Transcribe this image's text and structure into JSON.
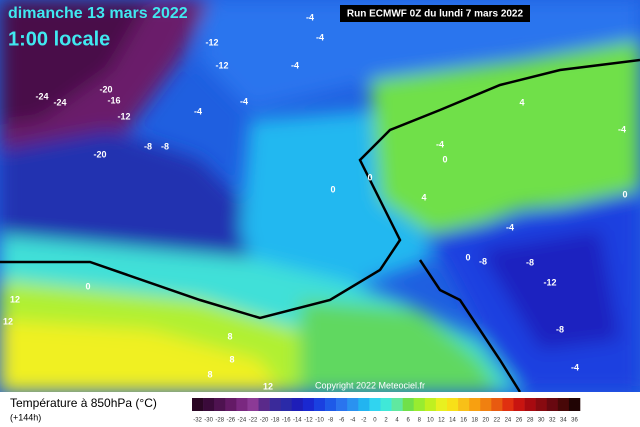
{
  "header": {
    "date": "dimanche 13 mars 2022",
    "time": "1:00 locale",
    "run": "Run ECMWF 0Z du lundi 7 mars 2022"
  },
  "map": {
    "labels": [
      -4,
      -12,
      -4,
      -12,
      -4,
      -24,
      -24,
      -20,
      -16,
      -12,
      -4,
      -4,
      -8,
      -8,
      -20,
      -4,
      4,
      0,
      0,
      0,
      4,
      -4,
      0,
      -4,
      0,
      -8,
      -8,
      -12,
      -8,
      0,
      -4,
      12,
      12,
      8,
      8,
      8,
      12
    ],
    "copyright": "Copyright 2022 Meteociel.fr"
  },
  "legend": {
    "title": "Température à 850hPa (°C)",
    "lead": "(+144h)",
    "ticks": [
      -32,
      -30,
      -28,
      -26,
      -24,
      -22,
      -20,
      -18,
      -16,
      -14,
      -12,
      -10,
      -8,
      -6,
      -4,
      -2,
      0,
      2,
      4,
      6,
      8,
      10,
      12,
      14,
      16,
      18,
      20,
      22,
      24,
      26,
      28,
      30,
      32,
      34,
      36
    ],
    "colors": [
      "#2a0624",
      "#3a0a3a",
      "#4e1250",
      "#641a66",
      "#7a2880",
      "#8c3a96",
      "#5a2a8a",
      "#3a2a9a",
      "#2a2aa8",
      "#1e1eb8",
      "#1a28d0",
      "#1a40e0",
      "#1e5ae8",
      "#2a74ee",
      "#2a92f0",
      "#22b4f0",
      "#30d4f0",
      "#40e8d8",
      "#60e8a0",
      "#70e04a",
      "#98ec30",
      "#c0f020",
      "#e8f020",
      "#f8e018",
      "#f8c018",
      "#f8a010",
      "#f08010",
      "#e85a10",
      "#e03010",
      "#c81410",
      "#a80a10",
      "#880a10",
      "#680810",
      "#480808",
      "#200404"
    ]
  }
}
